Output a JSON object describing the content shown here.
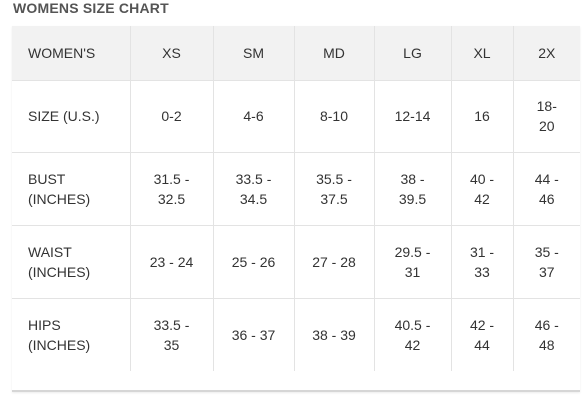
{
  "title": "WOMENS SIZE CHART",
  "table": {
    "header": [
      "WOMEN'S",
      "XS",
      "SM",
      "MD",
      "LG",
      "XL",
      "2X"
    ],
    "rows": [
      {
        "label": [
          "SIZE (U.S.)"
        ],
        "cells": [
          [
            "0-2"
          ],
          [
            "4-6"
          ],
          [
            "8-10"
          ],
          [
            "12-14"
          ],
          [
            "16"
          ],
          [
            "18-",
            "20"
          ]
        ]
      },
      {
        "label": [
          "BUST",
          "(INCHES)"
        ],
        "cells": [
          [
            "31.5 -",
            "32.5"
          ],
          [
            "33.5 -",
            "34.5"
          ],
          [
            "35.5 -",
            "37.5"
          ],
          [
            "38 -",
            "39.5"
          ],
          [
            "40 -",
            "42"
          ],
          [
            "44 -",
            "46"
          ]
        ]
      },
      {
        "label": [
          "WAIST",
          "(INCHES)"
        ],
        "cells": [
          [
            "23 - 24"
          ],
          [
            "25 - 26"
          ],
          [
            "27 - 28"
          ],
          [
            "29.5 -",
            "31"
          ],
          [
            "31 -",
            "33"
          ],
          [
            "35 -",
            "37"
          ]
        ]
      },
      {
        "label": [
          "HIPS",
          "(INCHES)"
        ],
        "cells": [
          [
            "33.5 -",
            "35"
          ],
          [
            "36 - 37"
          ],
          [
            "38 - 39"
          ],
          [
            "40.5 -",
            "42"
          ],
          [
            "42 -",
            "44"
          ],
          [
            "46 -",
            "48"
          ]
        ]
      }
    ]
  }
}
